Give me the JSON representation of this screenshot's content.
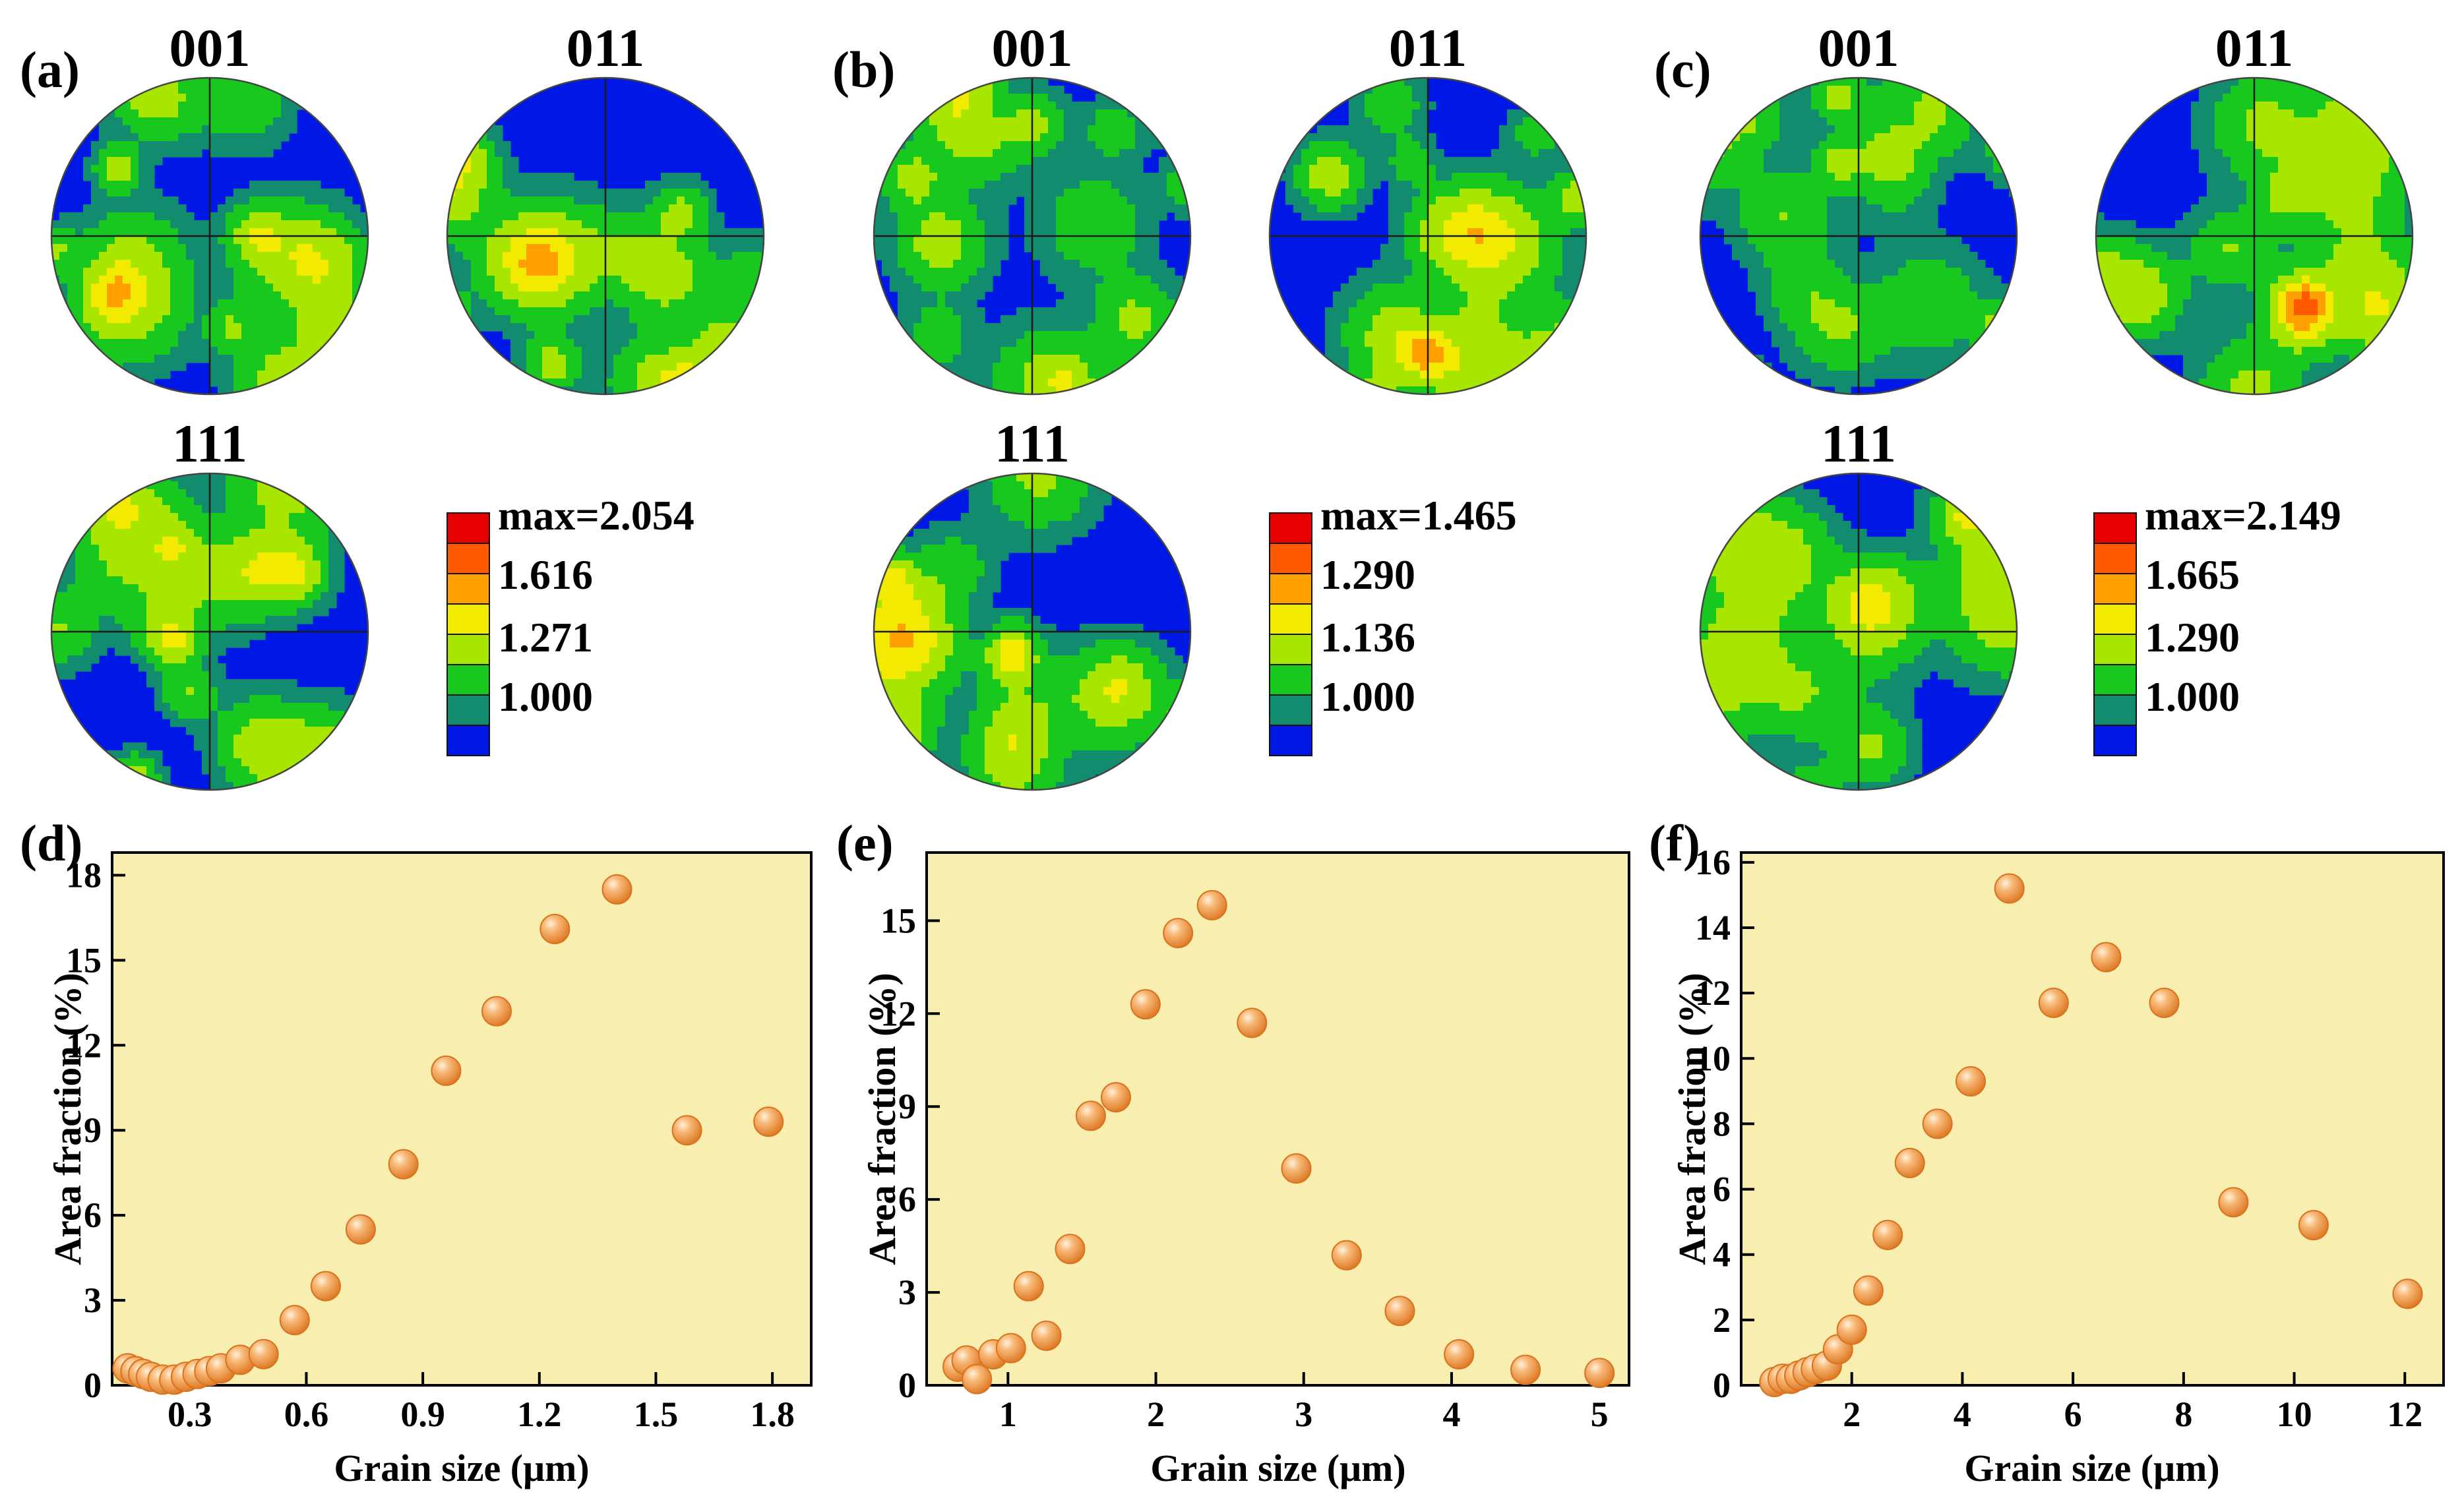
{
  "pole_figures": [
    {
      "panel_label": "(a)",
      "figures": [
        "001",
        "011",
        "111"
      ],
      "legend_labels": [
        "max=2.054",
        "1.616",
        "1.271",
        "1.000"
      ],
      "seed": 11
    },
    {
      "panel_label": "(b)",
      "figures": [
        "001",
        "011",
        "111"
      ],
      "legend_labels": [
        "max=1.465",
        "1.290",
        "1.136",
        "1.000"
      ],
      "seed": 37
    },
    {
      "panel_label": "(c)",
      "figures": [
        "001",
        "011",
        "111"
      ],
      "legend_labels": [
        "max=2.149",
        "1.665",
        "1.290",
        "1.000"
      ],
      "seed": 73
    }
  ],
  "legend_colors": [
    "#e60000",
    "#ff5a00",
    "#ffa000",
    "#f2ea00",
    "#a8e600",
    "#18c81e",
    "#128c6e",
    "#0018e6"
  ],
  "colors": {
    "plot_background": "#f8eeb0",
    "marker_fill": "#f4a35a",
    "marker_edge": "#d9731f",
    "marker_highlight": "#fde3c2"
  },
  "chart_data": [
    {
      "type": "scatter",
      "panel_label": "(d)",
      "xlabel": "Grain size (μm)",
      "ylabel": "Area fraction (%)",
      "xlim": [
        0.1,
        1.9
      ],
      "ylim": [
        0,
        18.8
      ],
      "xticks": [
        0.3,
        0.6,
        0.9,
        1.2,
        1.5,
        1.8
      ],
      "xtick_labels": [
        "0.3",
        "0.6",
        "0.9",
        "1.2",
        "1.5",
        "1.8"
      ],
      "yticks": [
        0,
        3,
        6,
        9,
        12,
        15,
        18
      ],
      "ytick_labels": [
        "0",
        "3",
        "6",
        "9",
        "12",
        "15",
        "18"
      ],
      "x": [
        0.14,
        0.16,
        0.18,
        0.2,
        0.23,
        0.26,
        0.29,
        0.32,
        0.35,
        0.38,
        0.43,
        0.49,
        0.57,
        0.65,
        0.74,
        0.85,
        0.96,
        1.09,
        1.24,
        1.4,
        1.58,
        1.79
      ],
      "y": [
        0.6,
        0.5,
        0.4,
        0.3,
        0.2,
        0.2,
        0.3,
        0.4,
        0.5,
        0.6,
        0.9,
        1.1,
        2.3,
        3.5,
        5.5,
        7.8,
        11.1,
        13.2,
        16.1,
        17.5,
        9.0,
        9.3
      ]
    },
    {
      "type": "scatter",
      "panel_label": "(e)",
      "xlabel": "Grain size (μm)",
      "ylabel": "Area fraction (%)",
      "xlim": [
        0.45,
        5.2
      ],
      "ylim": [
        0,
        17.2
      ],
      "xticks": [
        1,
        2,
        3,
        4,
        5
      ],
      "xtick_labels": [
        "1",
        "2",
        "3",
        "4",
        "5"
      ],
      "yticks": [
        0,
        3,
        6,
        9,
        12,
        15
      ],
      "ytick_labels": [
        "0",
        "3",
        "6",
        "9",
        "12",
        "15"
      ],
      "x": [
        0.66,
        0.72,
        0.79,
        0.9,
        1.02,
        1.14,
        1.26,
        1.42,
        1.56,
        1.73,
        1.93,
        2.15,
        2.38,
        2.65,
        2.95,
        3.29,
        3.65,
        4.05,
        4.5,
        5.0
      ],
      "y": [
        0.6,
        0.8,
        0.2,
        1.0,
        1.2,
        3.2,
        1.6,
        4.4,
        8.7,
        9.3,
        12.3,
        14.6,
        15.5,
        11.7,
        7.0,
        4.2,
        2.4,
        1.0,
        0.5,
        0.4
      ]
    },
    {
      "type": "scatter",
      "panel_label": "(f)",
      "xlabel": "Grain size (μm)",
      "ylabel": "Area fraction (%)",
      "xlim": [
        0.0,
        12.7
      ],
      "ylim": [
        0,
        16.3
      ],
      "xticks": [
        2,
        4,
        6,
        8,
        10,
        12
      ],
      "xtick_labels": [
        "2",
        "4",
        "6",
        "8",
        "10",
        "12"
      ],
      "yticks": [
        0,
        2,
        4,
        6,
        8,
        10,
        12,
        14,
        16
      ],
      "ytick_labels": [
        "0",
        "2",
        "4",
        "6",
        "8",
        "10",
        "12",
        "14",
        "16"
      ],
      "x": [
        0.6,
        0.75,
        0.9,
        1.05,
        1.2,
        1.35,
        1.55,
        1.75,
        2.0,
        2.3,
        2.65,
        3.05,
        3.55,
        4.15,
        4.85,
        5.65,
        6.6,
        7.65,
        8.9,
        10.35,
        12.05
      ],
      "y": [
        0.1,
        0.2,
        0.2,
        0.3,
        0.4,
        0.5,
        0.6,
        1.1,
        1.7,
        2.9,
        4.6,
        6.8,
        8.0,
        9.3,
        15.2,
        11.7,
        13.1,
        11.7,
        5.6,
        4.9,
        2.8
      ]
    }
  ]
}
